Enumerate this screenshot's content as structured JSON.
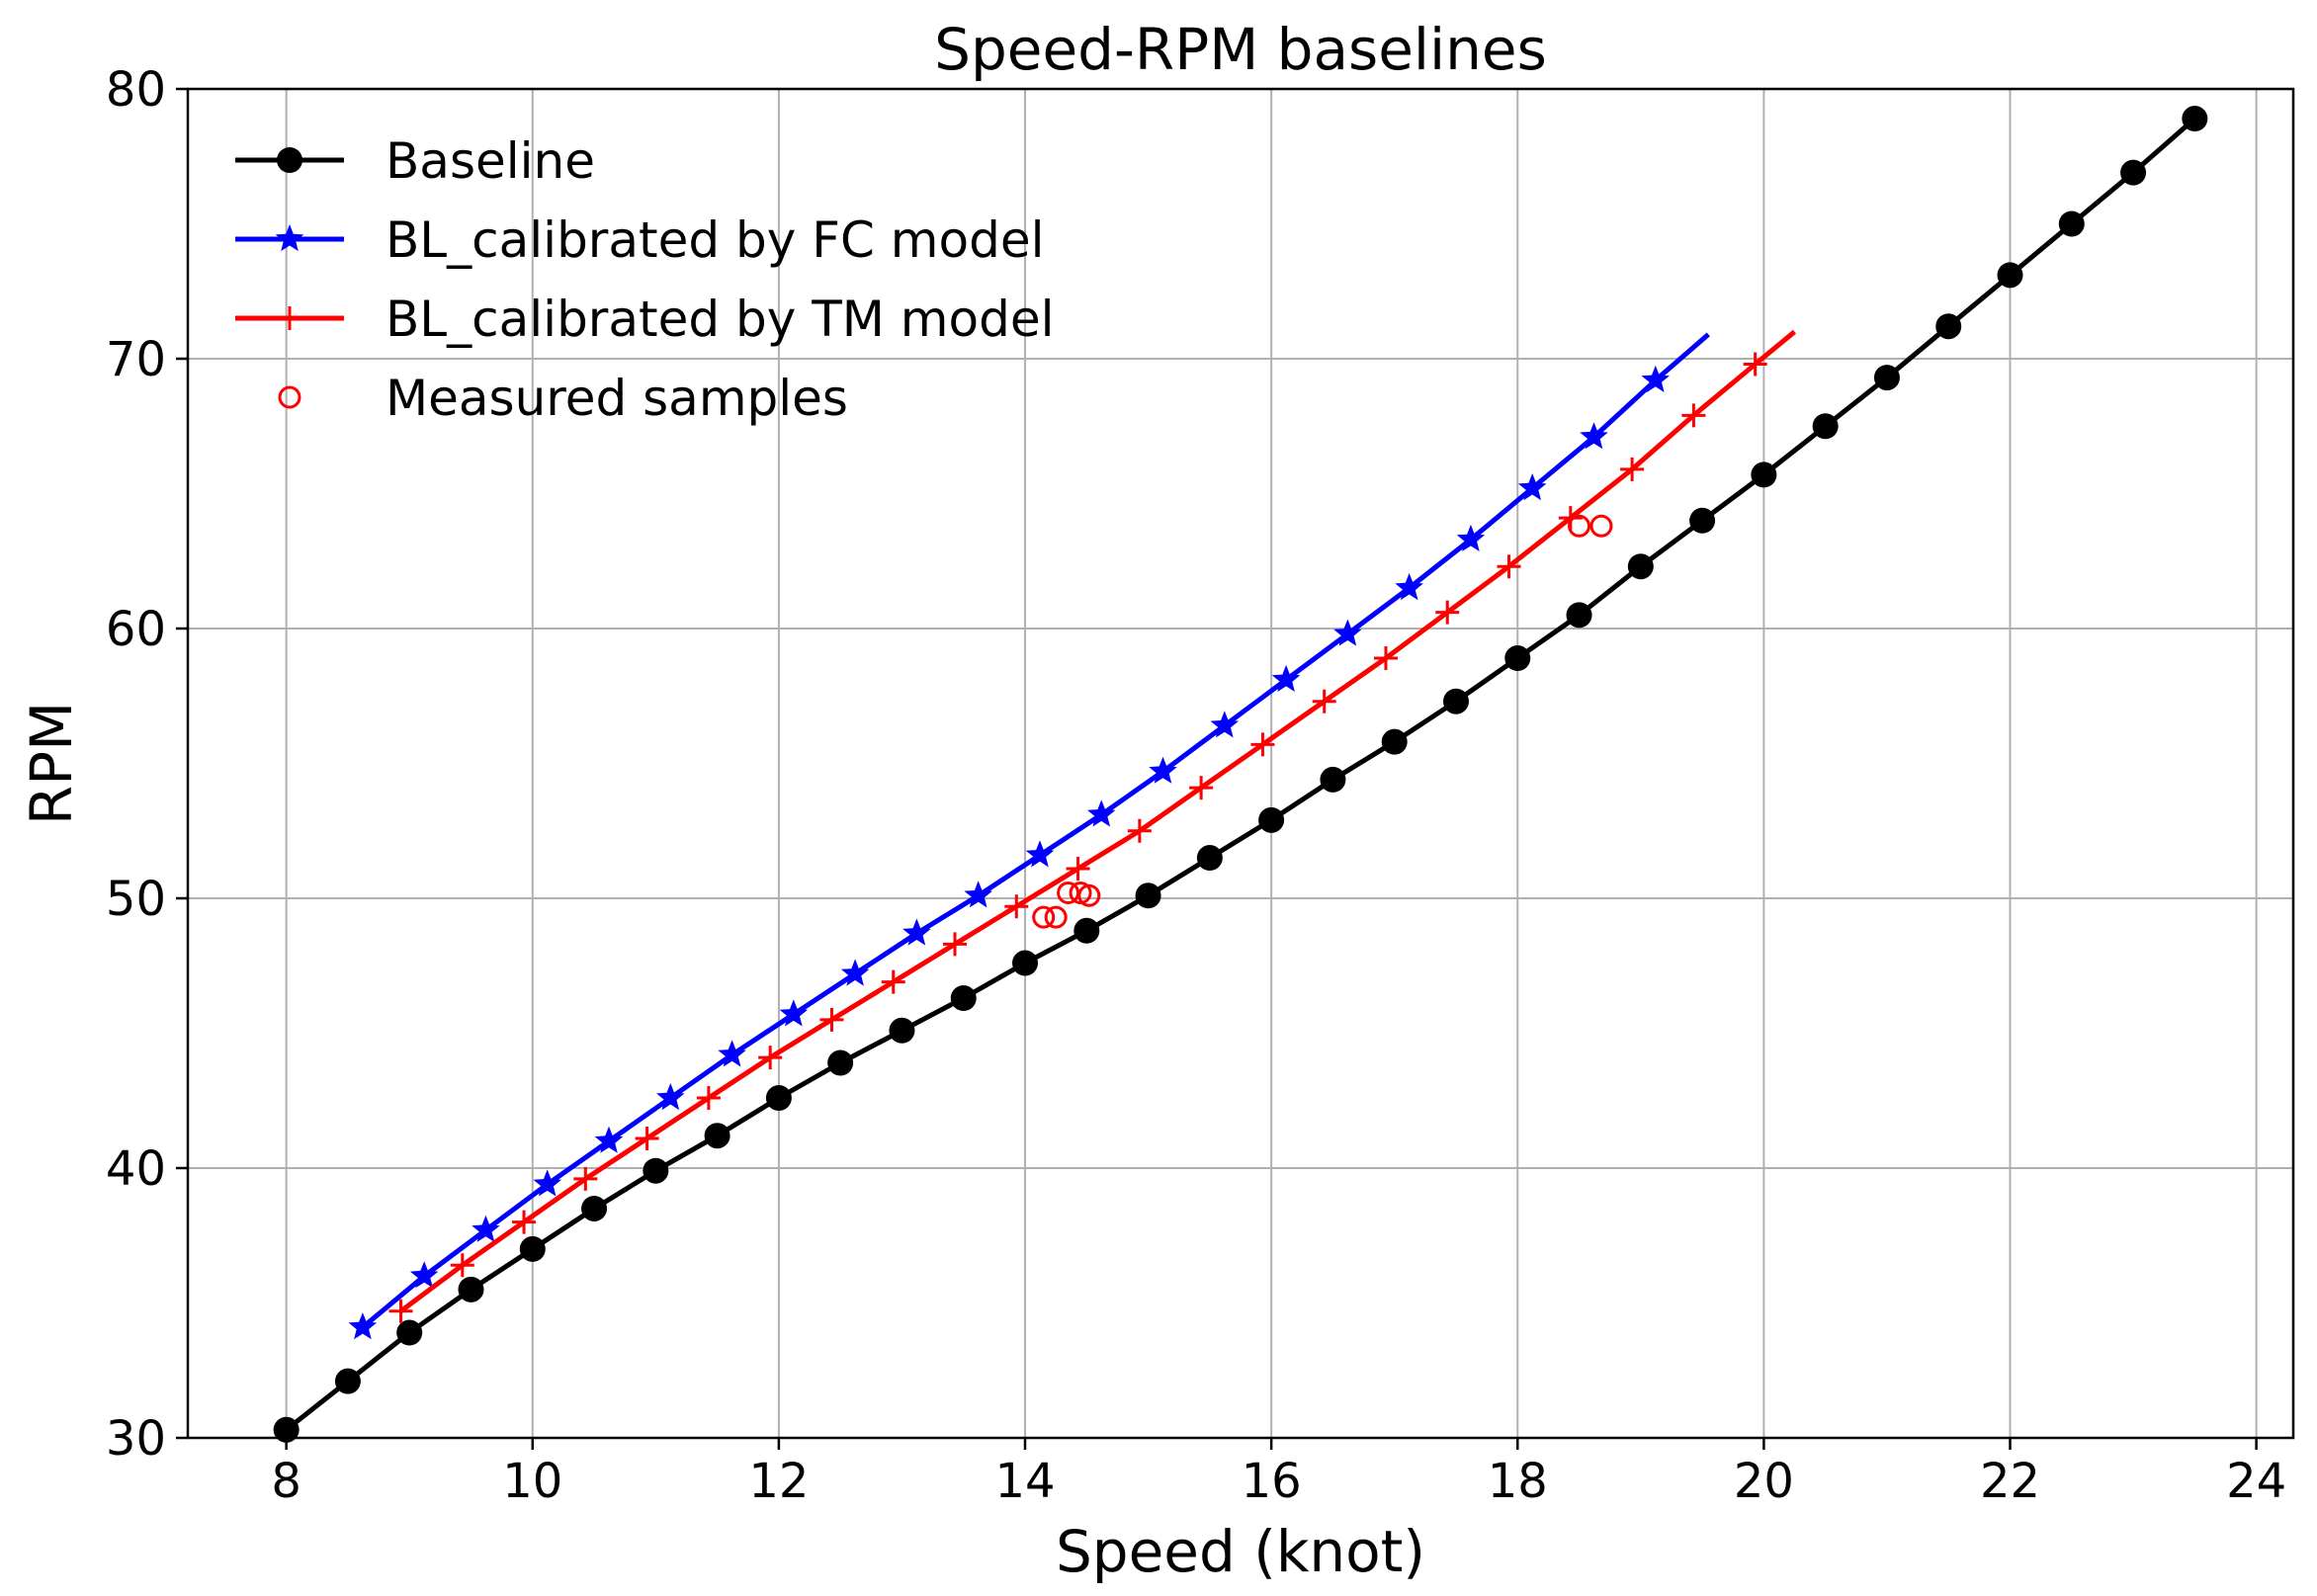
{
  "chart_data": {
    "type": "line",
    "title": "Speed-RPM baselines",
    "xlabel": "Speed (knot)",
    "ylabel": "RPM",
    "xlim": [
      7.2,
      24.3
    ],
    "ylim": [
      30,
      80
    ],
    "xticks": [
      8,
      10,
      12,
      14,
      16,
      18,
      20,
      22,
      24
    ],
    "yticks": [
      30,
      40,
      50,
      60,
      70,
      80
    ],
    "grid": true,
    "legend_position": "top-left",
    "series": [
      {
        "name": "Baseline",
        "color": "#000000",
        "marker": "circle",
        "line": true,
        "x": [
          8.0,
          8.5,
          9.0,
          9.5,
          10.0,
          10.5,
          11.0,
          11.5,
          12.0,
          12.5,
          13.0,
          13.5,
          14.0,
          14.5,
          15.0,
          15.5,
          16.0,
          16.5,
          17.0,
          17.5,
          18.0,
          18.5,
          19.0,
          19.5,
          20.0,
          20.5,
          21.0,
          21.5,
          22.0,
          22.5,
          23.0,
          23.5
        ],
        "y": [
          30.3,
          32.1,
          33.9,
          35.5,
          37.0,
          38.5,
          39.9,
          41.2,
          42.6,
          43.9,
          45.1,
          46.3,
          47.6,
          48.8,
          50.1,
          51.5,
          52.9,
          54.4,
          55.8,
          57.3,
          58.9,
          60.5,
          62.3,
          64.0,
          65.7,
          67.5,
          69.3,
          71.2,
          73.1,
          75.0,
          76.9,
          78.9
        ]
      },
      {
        "name": "BL_calibrated by FC model",
        "color": "#0000ff",
        "marker": "star",
        "line": true,
        "x": [
          8.62,
          9.12,
          9.62,
          10.12,
          10.62,
          11.12,
          11.62,
          12.12,
          12.62,
          13.12,
          13.62,
          14.12,
          14.62,
          15.12,
          15.62,
          16.12,
          16.62,
          17.12,
          17.62,
          18.12,
          18.62,
          19.12
        ],
        "y": [
          34.1,
          36.0,
          37.7,
          39.4,
          41.0,
          42.6,
          44.2,
          45.7,
          47.2,
          48.7,
          50.1,
          51.6,
          53.1,
          54.7,
          56.4,
          58.1,
          59.8,
          61.5,
          63.3,
          65.2,
          67.1,
          69.2
        ],
        "line_extension": [
          19.55,
          70.9
        ]
      },
      {
        "name": "BL_calibrated by TM model",
        "color": "#ff0000",
        "marker": "plus",
        "line": true,
        "x": [
          8.93,
          9.43,
          9.93,
          10.43,
          10.93,
          11.43,
          11.93,
          12.43,
          12.93,
          13.43,
          13.93,
          14.43,
          14.93,
          15.43,
          15.93,
          16.43,
          16.93,
          17.43,
          17.93,
          18.43,
          18.93,
          19.43,
          19.93
        ],
        "y": [
          34.7,
          36.4,
          38.0,
          39.6,
          41.1,
          42.6,
          44.1,
          45.5,
          46.9,
          48.3,
          49.7,
          51.1,
          52.5,
          54.1,
          55.7,
          57.3,
          58.9,
          60.6,
          62.3,
          64.1,
          65.9,
          67.9,
          69.8
        ],
        "line_extension": [
          20.25,
          71.0
        ]
      },
      {
        "name": "Measured samples",
        "color": "#ff0000",
        "marker": "open-circle",
        "line": false,
        "x": [
          14.15,
          14.25,
          14.35,
          14.45,
          14.52,
          18.5,
          18.68
        ],
        "y": [
          49.3,
          49.3,
          50.2,
          50.2,
          50.1,
          63.8,
          63.8
        ]
      }
    ]
  }
}
